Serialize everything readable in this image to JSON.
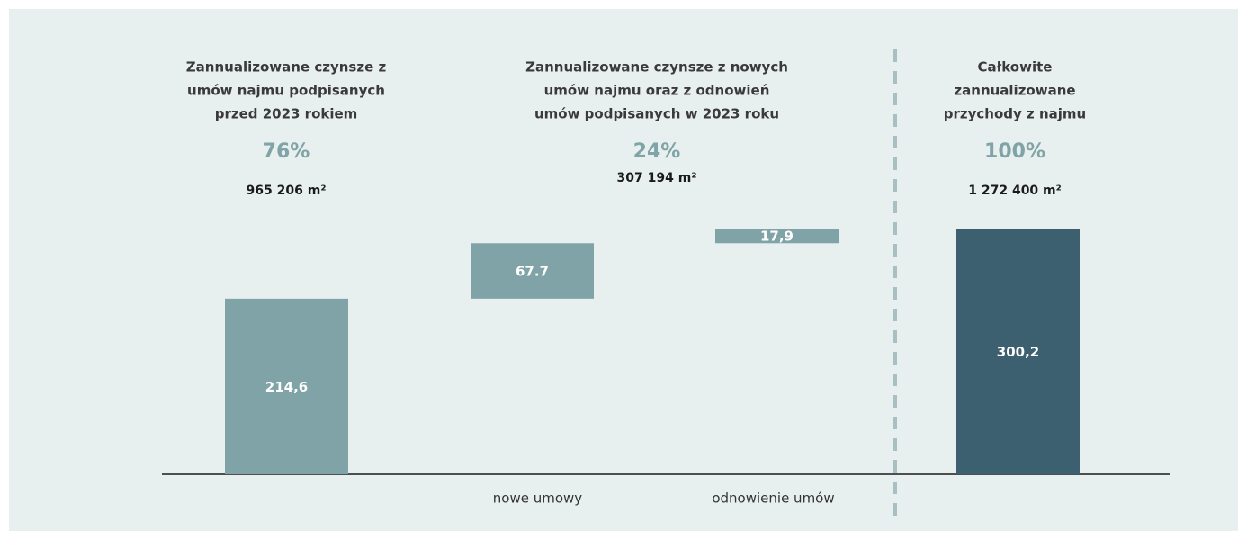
{
  "chart_data": {
    "type": "waterfall",
    "categories": [
      null,
      "nowe umowy",
      "odnowienie umów",
      null
    ],
    "values": [
      214.6,
      67.7,
      17.9,
      300.2
    ],
    "value_labels": [
      "214,6",
      "67.7",
      "17,9",
      "300,2"
    ],
    "measure": [
      "absolute",
      "relative",
      "relative",
      "total"
    ],
    "colors": [
      "#7fa3a7",
      "#7fa3a7",
      "#7fa3a7",
      "#3d6070"
    ],
    "groups": [
      {
        "title_lines": [
          "Zannualizowane czynsze z",
          "umów najmu podpisanych",
          "przed 2023 rokiem"
        ],
        "share": "76%",
        "area": "965 206 m²"
      },
      {
        "title_lines": [
          "Zannualizowane czynsze z nowych",
          "umów najmu oraz z odnowień",
          "umów podpisanych w 2023 roku"
        ],
        "share": "24%",
        "area": "307 194 m²"
      },
      {
        "title_lines": [
          "Całkowite",
          "zannualizowane",
          "przychody z najmu"
        ],
        "share": "100%",
        "area": "1 272 400 m²"
      }
    ]
  }
}
